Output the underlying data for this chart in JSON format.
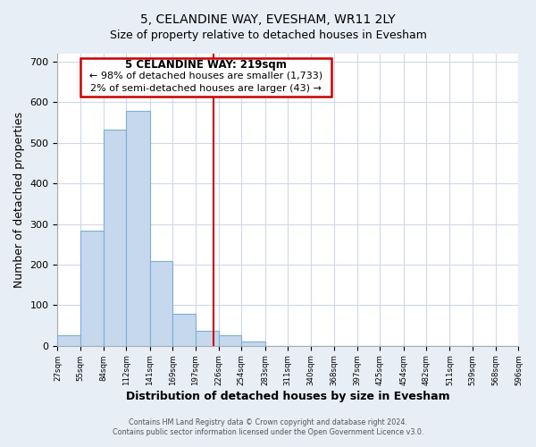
{
  "title": "5, CELANDINE WAY, EVESHAM, WR11 2LY",
  "subtitle": "Size of property relative to detached houses in Evesham",
  "xlabel": "Distribution of detached houses by size in Evesham",
  "ylabel": "Number of detached properties",
  "bar_edges": [
    27,
    55,
    84,
    112,
    141,
    169,
    197,
    226,
    254,
    283,
    311,
    340,
    368,
    397,
    425,
    454,
    482,
    511,
    539,
    568,
    596
  ],
  "bar_heights": [
    25,
    283,
    533,
    580,
    210,
    80,
    37,
    25,
    10,
    0,
    0,
    0,
    0,
    0,
    0,
    0,
    0,
    0,
    0,
    0
  ],
  "bar_color": "#c5d8ee",
  "bar_edge_color": "#7bafd4",
  "vline_x": 219,
  "vline_color": "#cc0000",
  "ylim": [
    0,
    720
  ],
  "xlim": [
    27,
    596
  ],
  "annotation_title": "5 CELANDINE WAY: 219sqm",
  "annotation_line1": "← 98% of detached houses are smaller (1,733)",
  "annotation_line2": "2% of semi-detached houses are larger (43) →",
  "tick_labels": [
    "27sqm",
    "55sqm",
    "84sqm",
    "112sqm",
    "141sqm",
    "169sqm",
    "197sqm",
    "226sqm",
    "254sqm",
    "283sqm",
    "311sqm",
    "340sqm",
    "368sqm",
    "397sqm",
    "425sqm",
    "454sqm",
    "482sqm",
    "511sqm",
    "539sqm",
    "568sqm",
    "596sqm"
  ],
  "footer_line1": "Contains HM Land Registry data © Crown copyright and database right 2024.",
  "footer_line2": "Contains public sector information licensed under the Open Government Licence v3.0.",
  "plot_bg_color": "#ffffff",
  "fig_bg_color": "#e8eef6",
  "grid_color": "#d0d8e8",
  "yticks": [
    0,
    100,
    200,
    300,
    400,
    500,
    600,
    700
  ]
}
